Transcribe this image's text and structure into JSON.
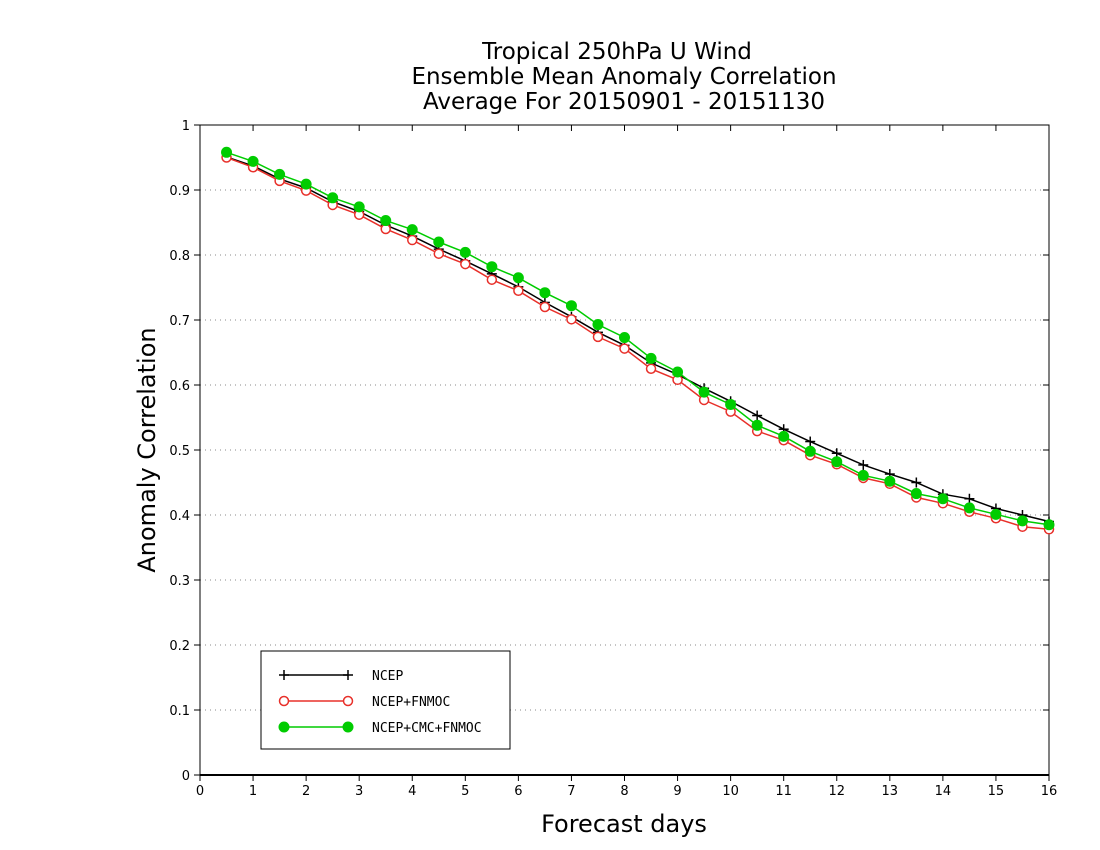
{
  "chart_data": {
    "type": "line",
    "title": [
      "Tropical 250hPa U Wind",
      "Ensemble Mean Anomaly Correlation",
      "Average For 20150901 - 20151130"
    ],
    "xlabel": "Forecast days",
    "ylabel": "Anomaly Correlation",
    "xlim": [
      0,
      16
    ],
    "ylim": [
      0,
      1
    ],
    "x_ticks": [
      0,
      1,
      2,
      3,
      4,
      5,
      6,
      7,
      8,
      9,
      10,
      11,
      12,
      13,
      14,
      15,
      16
    ],
    "y_ticks": [
      0,
      0.1,
      0.2,
      0.3,
      0.4,
      0.5,
      0.6,
      0.7,
      0.8,
      0.9,
      1
    ],
    "y_tick_labels": [
      "0",
      "0.1",
      "0.2",
      "0.3",
      "0.4",
      "0.5",
      "0.6",
      "0.7",
      "0.8",
      "0.9",
      "1"
    ],
    "grid": "horizontal dotted",
    "legend_position": "bottom-left",
    "x": [
      0.5,
      1,
      1.5,
      2,
      2.5,
      3,
      3.5,
      4,
      4.5,
      5,
      5.5,
      6,
      6.5,
      7,
      7.5,
      8,
      8.5,
      9,
      9.5,
      10,
      10.5,
      11,
      11.5,
      12,
      12.5,
      13,
      13.5,
      14,
      14.5,
      15,
      15.5,
      16
    ],
    "series": [
      {
        "name": "NCEP",
        "color": "#000000",
        "marker": "plus",
        "values": [
          0.951,
          0.937,
          0.917,
          0.903,
          0.882,
          0.867,
          0.846,
          0.829,
          0.809,
          0.791,
          0.771,
          0.751,
          0.727,
          0.705,
          0.681,
          0.661,
          0.634,
          0.616,
          0.595,
          0.575,
          0.553,
          0.532,
          0.513,
          0.495,
          0.477,
          0.463,
          0.45,
          0.432,
          0.425,
          0.41,
          0.4,
          0.39
        ]
      },
      {
        "name": "NCEP+FNMOC",
        "color": "#e8302a",
        "marker": "open-circle",
        "values": [
          0.95,
          0.935,
          0.914,
          0.899,
          0.877,
          0.862,
          0.84,
          0.823,
          0.802,
          0.786,
          0.762,
          0.745,
          0.72,
          0.701,
          0.674,
          0.656,
          0.625,
          0.608,
          0.577,
          0.559,
          0.529,
          0.515,
          0.492,
          0.478,
          0.457,
          0.448,
          0.427,
          0.418,
          0.405,
          0.395,
          0.382,
          0.378
        ]
      },
      {
        "name": "NCEP+CMC+FNMOC",
        "color": "#00cc00",
        "marker": "filled-circle",
        "values": [
          0.958,
          0.944,
          0.924,
          0.909,
          0.888,
          0.874,
          0.853,
          0.839,
          0.82,
          0.804,
          0.782,
          0.765,
          0.742,
          0.722,
          0.693,
          0.673,
          0.641,
          0.62,
          0.589,
          0.57,
          0.538,
          0.521,
          0.498,
          0.482,
          0.461,
          0.452,
          0.433,
          0.425,
          0.411,
          0.401,
          0.391,
          0.385
        ]
      }
    ]
  }
}
